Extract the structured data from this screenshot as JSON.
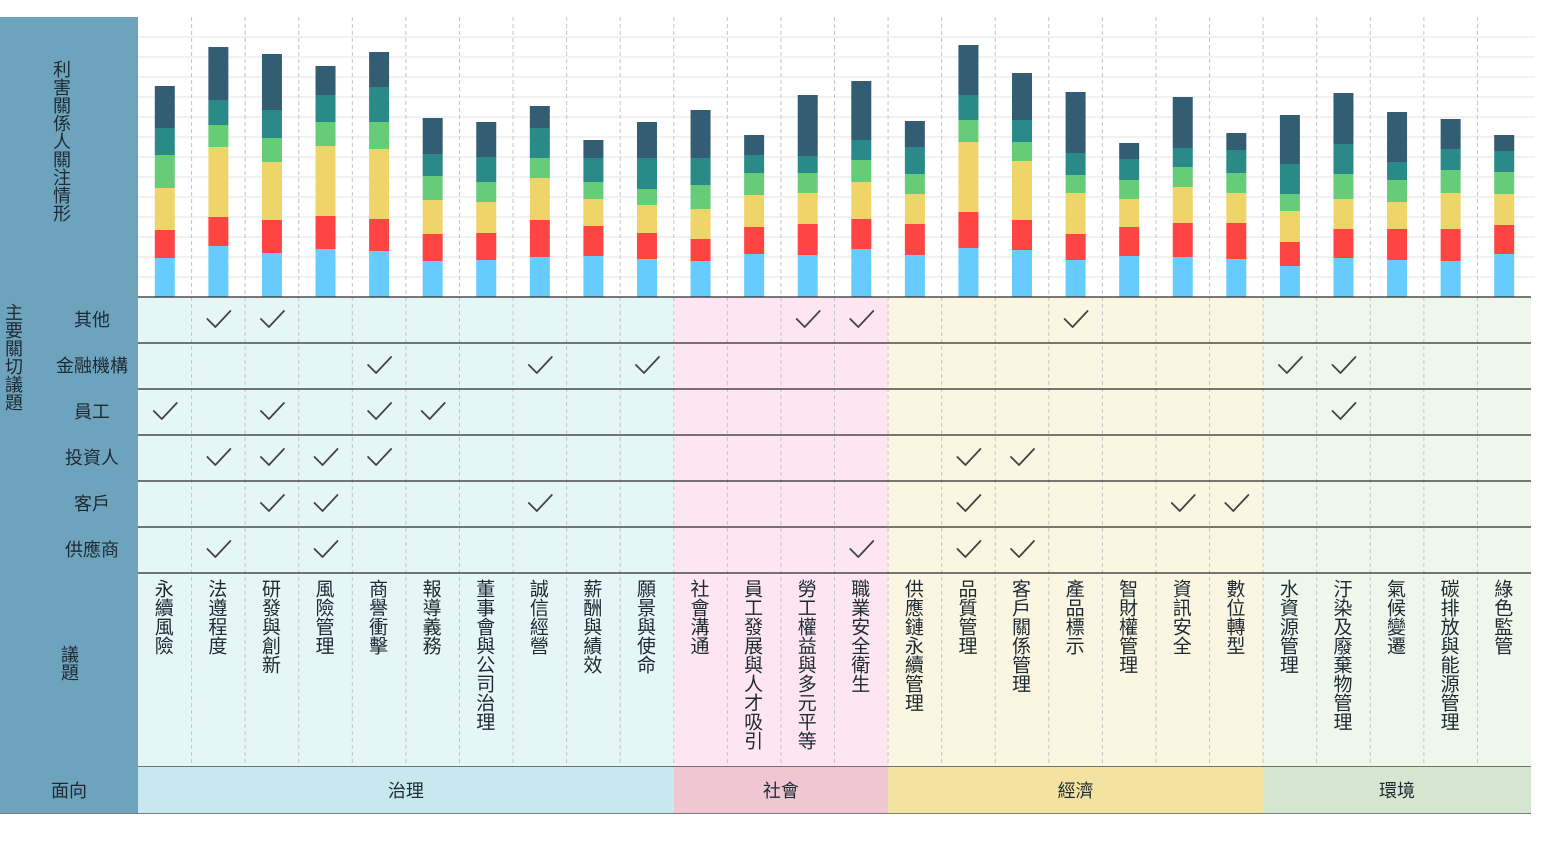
{
  "labels": {
    "chart_area": "利害關係人關注情形",
    "matrix_area": "主要關切議題",
    "issue_row": "議題",
    "dimension_row": "面向"
  },
  "stakeholders": [
    "其他",
    "金融機構",
    "員工",
    "投資人",
    "客戶",
    "供應商"
  ],
  "dimensions": [
    {
      "name": "治理",
      "count": 10,
      "light": "#e5f6f6",
      "dark": "#c7e8ee"
    },
    {
      "name": "社會",
      "count": 4,
      "light": "#fde6f2",
      "dark": "#efc6d2"
    },
    {
      "name": "經濟",
      "count": 7,
      "light": "#fbf6e1",
      "dark": "#f4e2a1"
    },
    {
      "name": "環境",
      "count": 5,
      "light": "#eff7ed",
      "dark": "#d5e6d0"
    }
  ],
  "colors": {
    "header": "#6da3bd",
    "segments": [
      "#66cbff",
      "#ff4444",
      "#efd46a",
      "#66cc77",
      "#2a8a88",
      "#335d73"
    ]
  },
  "chart_data": {
    "type": "bar",
    "stacked": true,
    "categories": [
      "永續風險",
      "法遵程度",
      "研發與創新",
      "風險管理",
      "商譽衝擊",
      "報導義務",
      "董事會與公司治理",
      "誠信經營",
      "薪酬與績效",
      "願景與使命",
      "社會溝通",
      "員工發展與人才吸引",
      "勞工權益與多元平等",
      "職業安全衛生",
      "供應鏈永續管理",
      "品質管理",
      "客戶關係管理",
      "產品標示",
      "智財權管理",
      "資訊安全",
      "數位轉型",
      "水資源管理",
      "汙染及廢棄物管理",
      "氣候變遷",
      "碳排放與能源管理",
      "綠色監管"
    ],
    "ylim": [
      0,
      280
    ],
    "grid": true,
    "series": [
      {
        "values": [
          39,
          51,
          44,
          48,
          46,
          36,
          37,
          40,
          41,
          38,
          36,
          43,
          42,
          48,
          42,
          49,
          47,
          37,
          41,
          40,
          38,
          31,
          39,
          37,
          36,
          43
        ]
      },
      {
        "values": [
          28,
          29,
          33,
          33,
          32,
          27,
          27,
          37,
          30,
          26,
          22,
          27,
          31,
          30,
          31,
          36,
          30,
          26,
          29,
          34,
          36,
          24,
          29,
          31,
          32,
          29
        ]
      },
      {
        "values": [
          42,
          70,
          58,
          70,
          70,
          34,
          31,
          42,
          27,
          28,
          30,
          32,
          31,
          37,
          30,
          70,
          59,
          41,
          28,
          36,
          30,
          31,
          30,
          27,
          36,
          31
        ]
      },
      {
        "values": [
          33,
          22,
          24,
          24,
          27,
          24,
          20,
          20,
          17,
          16,
          24,
          22,
          20,
          22,
          20,
          22,
          19,
          18,
          19,
          20,
          20,
          17,
          25,
          22,
          23,
          22
        ]
      },
      {
        "values": [
          27,
          25,
          28,
          27,
          35,
          22,
          25,
          30,
          24,
          31,
          27,
          18,
          17,
          20,
          27,
          25,
          22,
          22,
          21,
          19,
          23,
          30,
          30,
          18,
          21,
          21
        ]
      },
      {
        "values": [
          42,
          53,
          56,
          29,
          35,
          36,
          35,
          22,
          18,
          36,
          48,
          20,
          61,
          59,
          26,
          50,
          47,
          61,
          16,
          51,
          17,
          49,
          51,
          50,
          30,
          16
        ]
      }
    ]
  },
  "checks": [
    [
      0,
      1,
      1,
      0,
      0,
      0,
      0,
      0,
      0,
      0,
      0,
      0,
      1,
      1,
      0,
      0,
      0,
      1,
      0,
      0,
      0,
      0,
      0,
      0,
      0,
      0
    ],
    [
      0,
      0,
      0,
      0,
      1,
      0,
      0,
      1,
      0,
      1,
      0,
      0,
      0,
      0,
      0,
      0,
      0,
      0,
      0,
      0,
      0,
      1,
      1,
      0,
      0,
      0
    ],
    [
      1,
      0,
      1,
      0,
      1,
      1,
      0,
      0,
      0,
      0,
      0,
      0,
      0,
      0,
      0,
      0,
      0,
      0,
      0,
      0,
      0,
      0,
      1,
      0,
      0,
      0
    ],
    [
      0,
      1,
      1,
      1,
      1,
      0,
      0,
      0,
      0,
      0,
      0,
      0,
      0,
      0,
      0,
      1,
      1,
      0,
      0,
      0,
      0,
      0,
      0,
      0,
      0,
      0
    ],
    [
      0,
      0,
      1,
      1,
      0,
      0,
      0,
      1,
      0,
      0,
      0,
      0,
      0,
      0,
      0,
      1,
      0,
      0,
      0,
      1,
      1,
      0,
      0,
      0,
      0,
      0
    ],
    [
      0,
      1,
      0,
      1,
      0,
      0,
      0,
      0,
      0,
      0,
      0,
      0,
      0,
      1,
      0,
      1,
      1,
      0,
      0,
      0,
      0,
      0,
      0,
      0,
      0,
      0
    ]
  ]
}
